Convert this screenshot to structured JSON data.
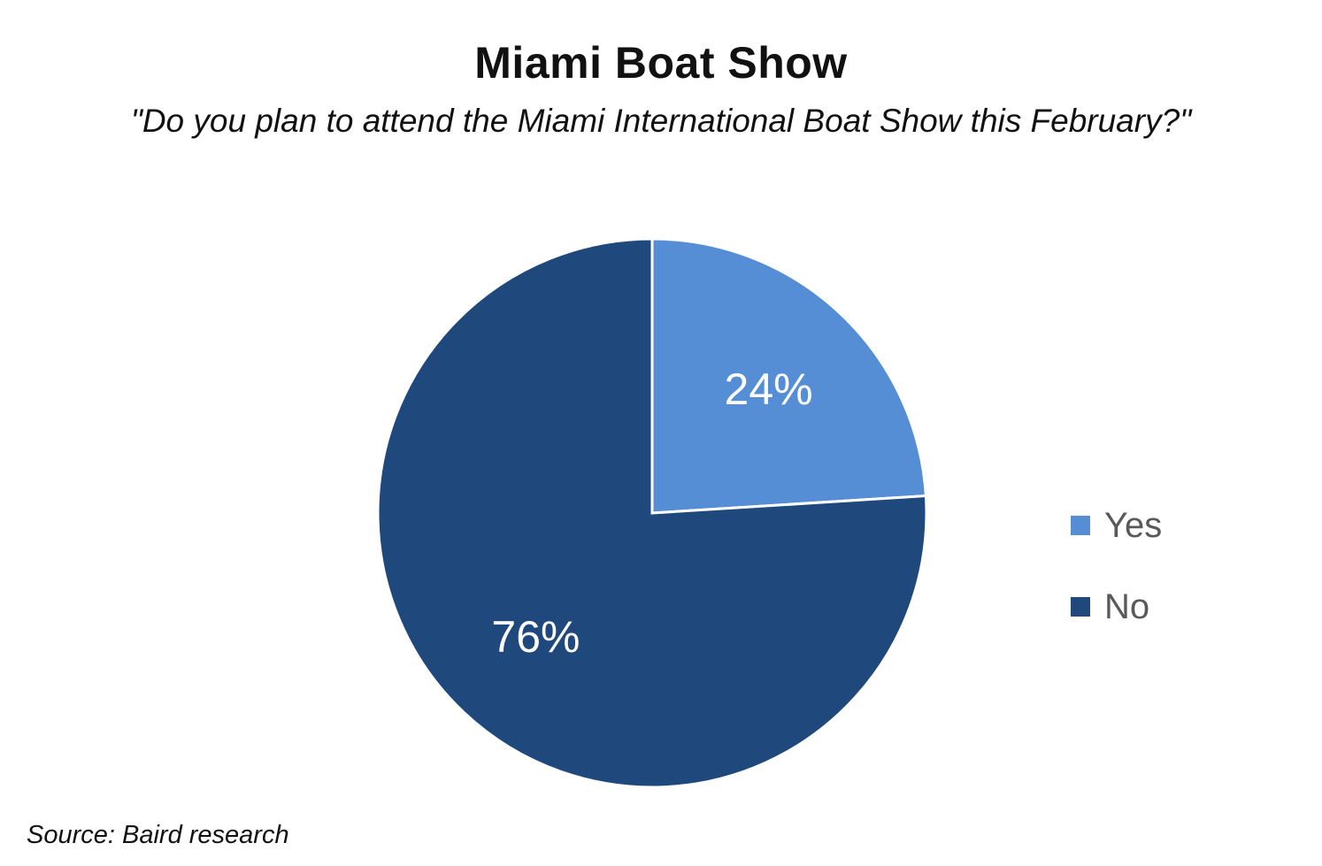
{
  "chart_data": {
    "type": "pie",
    "title": "Miami Boat Show",
    "subtitle": "\"Do you plan to attend the Miami International Boat Show this February?\"",
    "source": "Source: Baird research",
    "slices": [
      {
        "name": "Yes",
        "value": 24,
        "label": "24%",
        "color": "#558ed5"
      },
      {
        "name": "No",
        "value": 76,
        "label": "76%",
        "color": "#1f497d"
      }
    ],
    "legend_position": "right"
  }
}
